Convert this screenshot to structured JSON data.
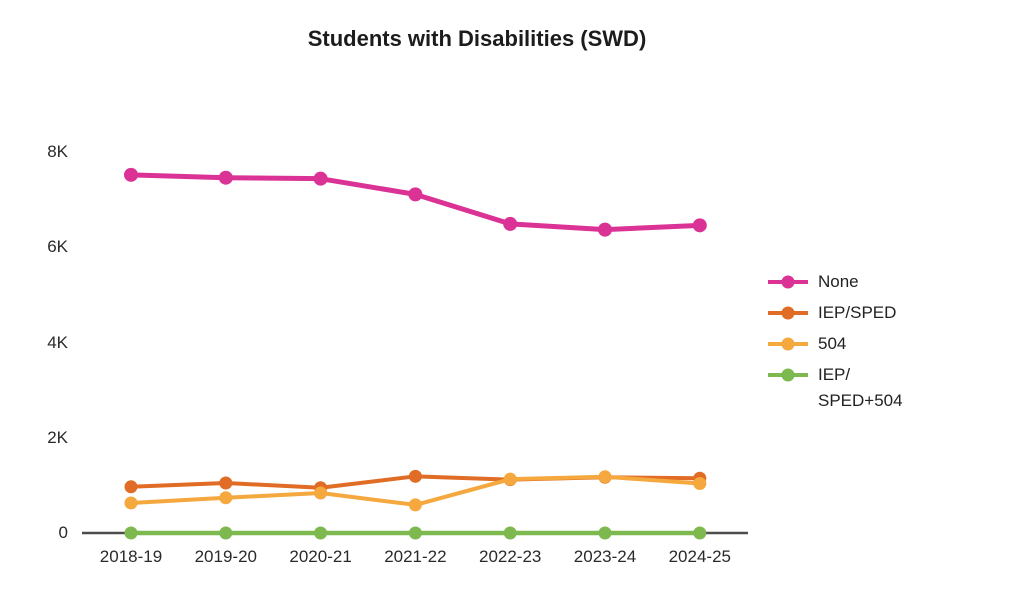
{
  "chart_data": {
    "type": "line",
    "title": "Students with Disabilities (SWD)",
    "categories": [
      "2018-19",
      "2019-20",
      "2020-21",
      "2021-22",
      "2022-23",
      "2023-24",
      "2024-25"
    ],
    "series": [
      {
        "name": "None",
        "legend_label": "None",
        "color": "#DB3296",
        "values": [
          7520,
          7460,
          7440,
          7110,
          6490,
          6370,
          6460
        ]
      },
      {
        "name": "IEP/SPED",
        "legend_label": "IEP/SPED",
        "color": "#E06C25",
        "values": [
          970,
          1050,
          950,
          1190,
          1120,
          1170,
          1150
        ]
      },
      {
        "name": "504",
        "legend_label": "504",
        "color": "#F4A83D",
        "values": [
          630,
          740,
          840,
          590,
          1130,
          1180,
          1040
        ]
      },
      {
        "name": "IEP/SPED+504",
        "legend_label": "IEP/\nSPED+504",
        "color": "#7EB950",
        "values": [
          0,
          0,
          0,
          0,
          0,
          0,
          0
        ]
      }
    ],
    "yticks": [
      {
        "label": "8K",
        "value": 8000
      },
      {
        "label": "6K",
        "value": 6000
      },
      {
        "label": "4K",
        "value": 4000
      },
      {
        "label": "2K",
        "value": 2000
      },
      {
        "label": "0",
        "value": 0
      }
    ],
    "ylim": [
      0,
      8000
    ],
    "xlabel": "",
    "ylabel": "",
    "grid": false,
    "legend_position": "right",
    "axis_color": "#4d4d4d"
  }
}
